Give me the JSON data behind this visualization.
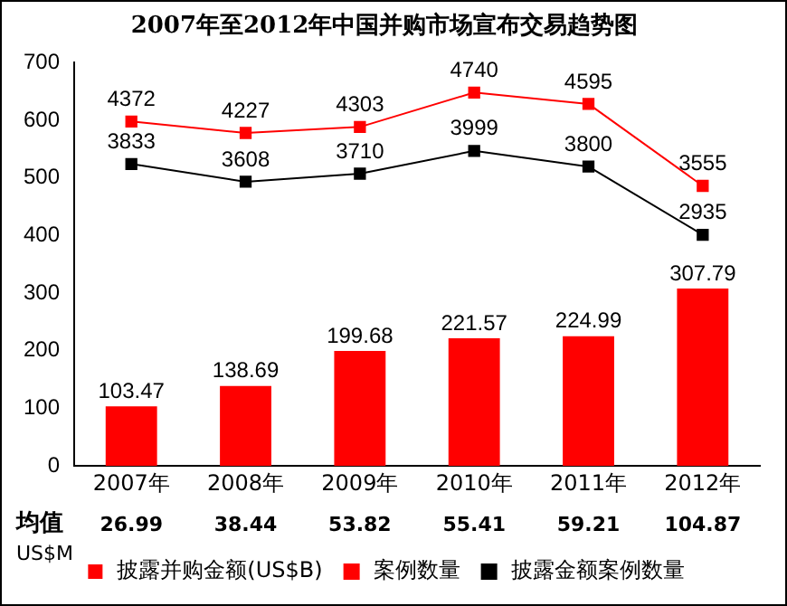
{
  "chart_data": {
    "type": "bar",
    "title": "2007年至2012年中国并购市场宣布交易趋势图",
    "categories": [
      "2007年",
      "2008年",
      "2009年",
      "2010年",
      "2011年",
      "2012年"
    ],
    "series": [
      {
        "name": "披露并购金额(US$B)",
        "color": "#ff0000",
        "values": [
          103.47,
          138.69,
          199.68,
          221.57,
          224.99,
          307.79
        ]
      },
      {
        "name": "案例数量",
        "type": "line",
        "axis": "y2",
        "color": "#ff0000",
        "values": [
          4372,
          4227,
          4303,
          4740,
          4595,
          3555
        ]
      },
      {
        "name": "披露金额案例数量",
        "type": "line",
        "axis": "y2",
        "color": "#000000",
        "values": [
          3833,
          3608,
          3710,
          3999,
          3800,
          2935
        ]
      }
    ],
    "ylim": [
      0,
      700
    ],
    "yticks": [
      0,
      100,
      200,
      300,
      400,
      500,
      600,
      700
    ],
    "y2lim": [
      0,
      5120
    ],
    "tick_labels": "xy",
    "marker": "square",
    "data_labels": true,
    "grid": false,
    "legend": "bottom",
    "annotations": [
      "均值",
      "US$M",
      "26.99",
      "38.44",
      "53.82",
      "55.41",
      "59.21",
      "104.87"
    ]
  }
}
